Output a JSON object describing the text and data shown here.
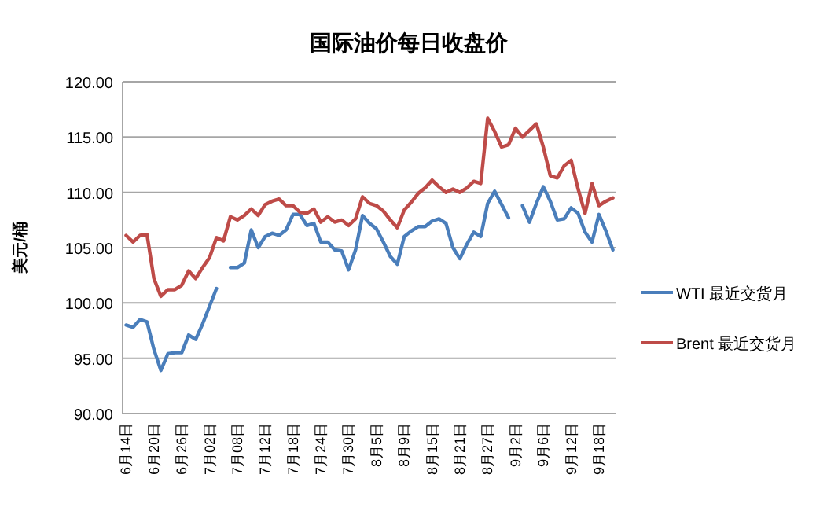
{
  "chart_data": {
    "type": "line",
    "title": "国际油价每日收盘价",
    "ylabel": "美元/桶",
    "categories": [
      "6月14日",
      null,
      null,
      null,
      "6月20日",
      null,
      null,
      null,
      "6月26日",
      null,
      null,
      null,
      "7月02日",
      null,
      null,
      null,
      "7月08日",
      null,
      null,
      null,
      "7月12日",
      null,
      null,
      null,
      "7月18日",
      null,
      null,
      null,
      "7月24日",
      null,
      null,
      null,
      "7月30日",
      null,
      null,
      null,
      "8月5日",
      null,
      null,
      null,
      "8月9日",
      null,
      null,
      null,
      "8月15日",
      null,
      null,
      null,
      "8月21日",
      null,
      null,
      null,
      "8月27日",
      null,
      null,
      null,
      "9月2日",
      null,
      null,
      null,
      "9月6日",
      null,
      null,
      null,
      "9月12日",
      null,
      null,
      null,
      "9月18日",
      null,
      null
    ],
    "series": [
      {
        "name": "WTI 最近交货月",
        "color": "#4a7ebb",
        "values": [
          98.0,
          97.8,
          98.5,
          98.3,
          95.8,
          93.9,
          95.4,
          95.5,
          95.5,
          97.1,
          96.7,
          98.1,
          99.7,
          101.3,
          null,
          103.2,
          103.2,
          103.6,
          106.6,
          105.0,
          106.0,
          106.3,
          106.1,
          106.6,
          108.0,
          108.0,
          107.0,
          107.2,
          105.5,
          105.5,
          104.8,
          104.7,
          103.0,
          104.8,
          107.9,
          107.2,
          106.7,
          105.5,
          104.2,
          103.5,
          106.0,
          106.5,
          106.9,
          106.9,
          107.4,
          107.6,
          107.2,
          105.0,
          104.0,
          105.3,
          106.4,
          106.0,
          109.0,
          110.1,
          108.9,
          107.7,
          null,
          108.8,
          107.3,
          109.0,
          110.5,
          109.2,
          107.5,
          107.6,
          108.6,
          108.1,
          106.4,
          105.5,
          108.0,
          106.5,
          104.8
        ]
      },
      {
        "name": "Brent 最近交货月",
        "color": "#be4b48",
        "values": [
          106.1,
          105.5,
          106.1,
          106.2,
          102.2,
          100.6,
          101.2,
          101.2,
          101.6,
          102.9,
          102.2,
          103.2,
          104.1,
          105.9,
          105.6,
          107.8,
          107.5,
          107.9,
          108.5,
          107.9,
          108.9,
          109.2,
          109.4,
          108.8,
          108.8,
          108.2,
          108.1,
          108.5,
          107.3,
          107.8,
          107.3,
          107.5,
          107.0,
          107.6,
          109.6,
          109.0,
          108.8,
          108.3,
          107.5,
          106.8,
          108.4,
          109.1,
          109.9,
          110.4,
          111.1,
          110.5,
          110.0,
          110.3,
          110.0,
          110.4,
          111.0,
          110.8,
          116.7,
          115.5,
          114.1,
          114.3,
          115.8,
          115.0,
          115.6,
          116.2,
          114.1,
          111.5,
          111.3,
          112.4,
          112.9,
          110.3,
          108.1,
          110.8,
          108.8,
          109.2,
          109.5
        ]
      }
    ],
    "ylim": [
      90,
      120
    ],
    "yticks": [
      {
        "value": 90,
        "label": "90.00"
      },
      {
        "value": 95,
        "label": "95.00"
      },
      {
        "value": 100,
        "label": "100.00"
      },
      {
        "value": 105,
        "label": "105.00"
      },
      {
        "value": 110,
        "label": "110.00"
      },
      {
        "value": 115,
        "label": "115.00"
      },
      {
        "value": 120,
        "label": "120.00"
      }
    ],
    "grid": "y",
    "legend": "right",
    "line_style": "solid"
  }
}
